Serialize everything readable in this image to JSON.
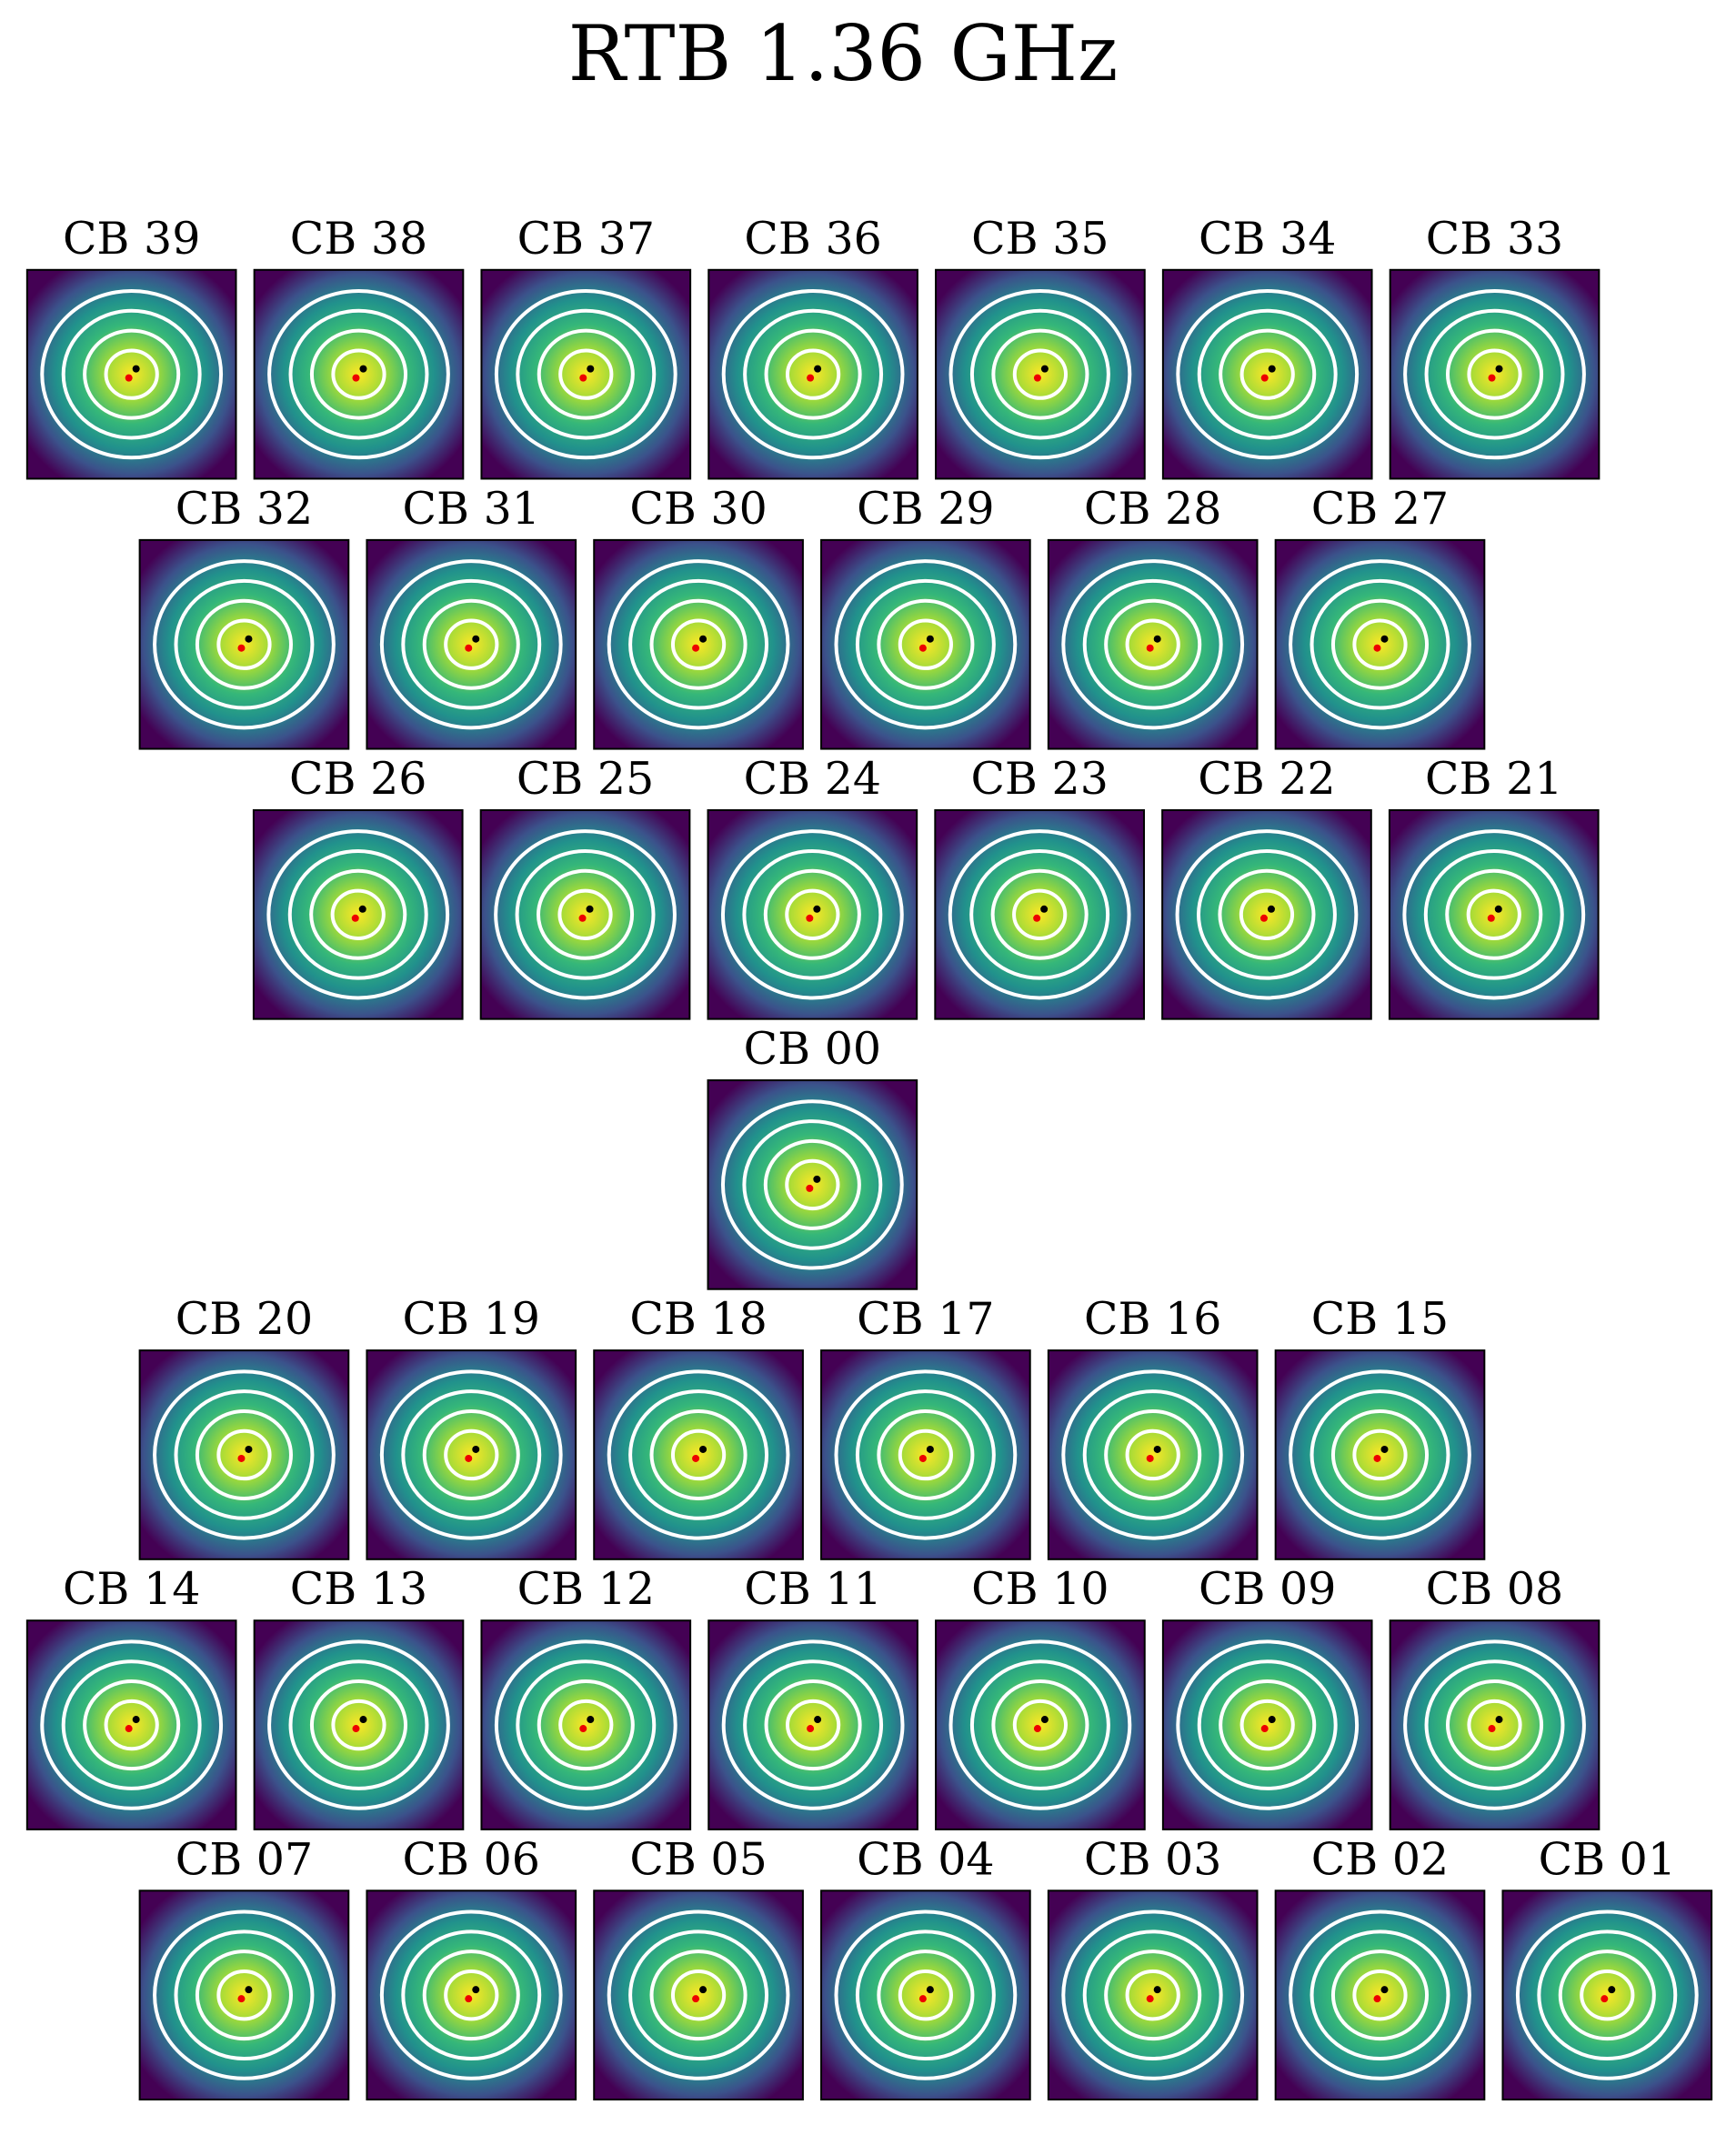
{
  "title": "RTB 1.36 GHz",
  "rows": [
    [
      "CB 39",
      "CB 38",
      "CB 37",
      "CB 36",
      "CB 35",
      "CB 34",
      "CB 33"
    ],
    [
      "CB 32",
      "CB 31",
      "CB 30",
      "CB 29",
      "CB 28",
      "CB 27"
    ],
    [
      "CB 26",
      "CB 25",
      "CB 24",
      "CB 23",
      "CB 22",
      "CB 21"
    ],
    [
      "CB 00"
    ],
    [
      "CB 20",
      "CB 19",
      "CB 18",
      "CB 17",
      "CB 16",
      "CB 15"
    ],
    [
      "CB 14",
      "CB 13",
      "CB 12",
      "CB 11",
      "CB 10",
      "CB 09",
      "CB 08"
    ],
    [
      "CB 07",
      "CB 06",
      "CB 05",
      "CB 04",
      "CB 03",
      "CB 02",
      "CB 01"
    ]
  ]
}
